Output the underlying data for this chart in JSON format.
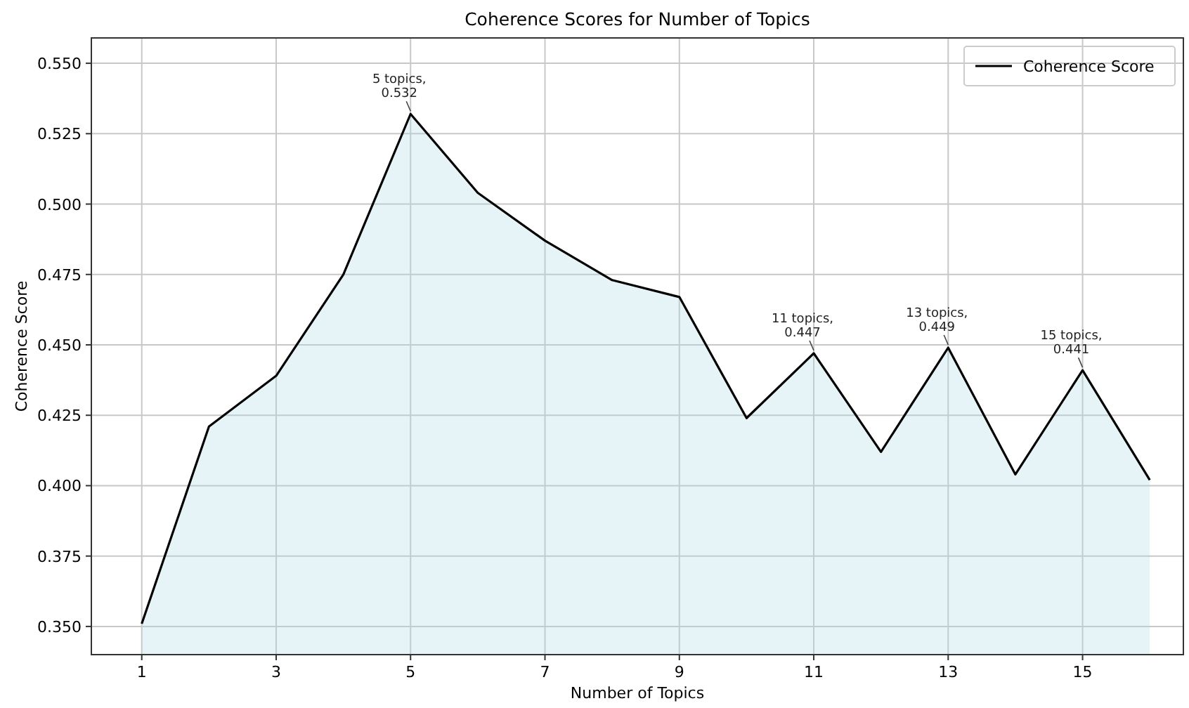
{
  "chart_data": {
    "type": "area",
    "title": "Coherence Scores for Number of Topics",
    "xlabel": "Number of Topics",
    "ylabel": "Coherence Score",
    "x": [
      1,
      2,
      3,
      4,
      5,
      6,
      7,
      8,
      9,
      10,
      11,
      12,
      13,
      14,
      15,
      16
    ],
    "series": [
      {
        "name": "Coherence Score",
        "color": "#000000",
        "values": [
          0.351,
          0.421,
          0.439,
          0.475,
          0.532,
          0.504,
          0.487,
          0.473,
          0.467,
          0.424,
          0.447,
          0.412,
          0.449,
          0.404,
          0.441,
          0.402
        ]
      }
    ],
    "xlim": [
      0.25,
      16.5
    ],
    "xticks": [
      1,
      3,
      5,
      7,
      9,
      11,
      13,
      15
    ],
    "ylim": [
      0.34,
      0.559
    ],
    "yticks": [
      {
        "value": 0.35,
        "label": "0.350"
      },
      {
        "value": 0.375,
        "label": "0.375"
      },
      {
        "value": 0.4,
        "label": "0.400"
      },
      {
        "value": 0.425,
        "label": "0.425"
      },
      {
        "value": 0.45,
        "label": "0.450"
      },
      {
        "value": 0.475,
        "label": "0.475"
      },
      {
        "value": 0.5,
        "label": "0.500"
      },
      {
        "value": 0.525,
        "label": "0.525"
      },
      {
        "value": 0.55,
        "label": "0.550"
      }
    ],
    "grid": true,
    "legend": "top right",
    "annotations": [
      {
        "text": "5 topics,\n0.532",
        "x": 5,
        "y": 0.532
      },
      {
        "text": "11 topics,\n0.447",
        "x": 11,
        "y": 0.447
      },
      {
        "text": "13 topics,\n0.449",
        "x": 13,
        "y": 0.449
      },
      {
        "text": "15 topics,\n0.441",
        "x": 15,
        "y": 0.441
      }
    ]
  }
}
